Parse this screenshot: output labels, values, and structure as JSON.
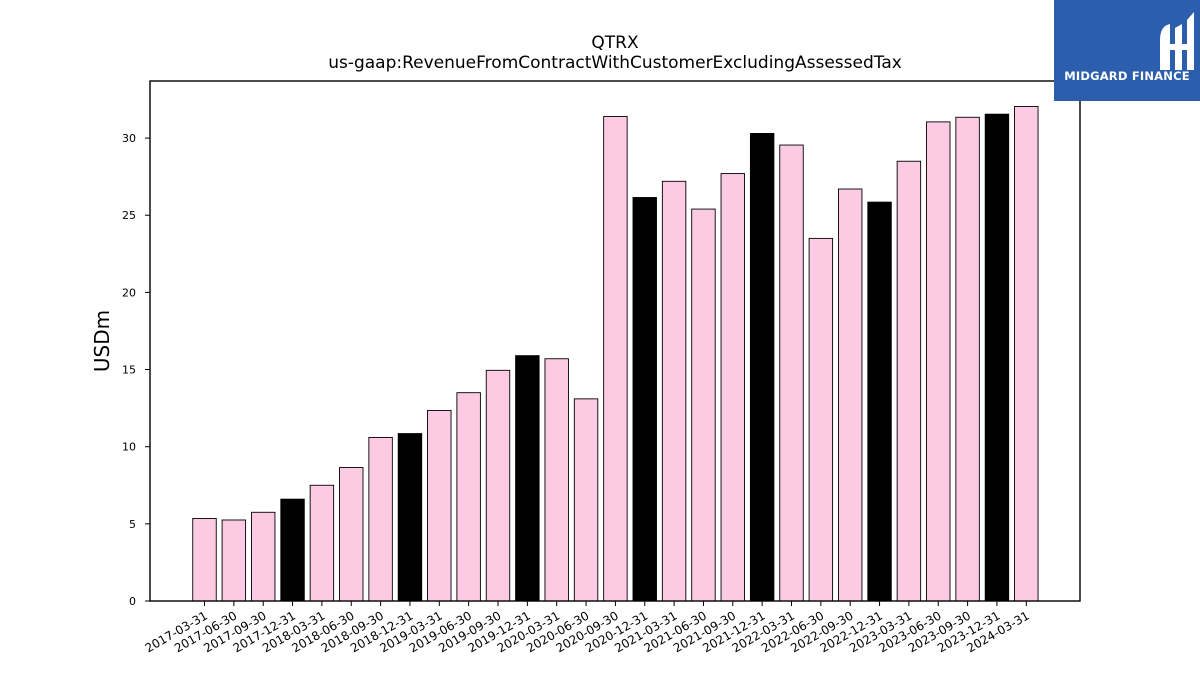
{
  "brand": {
    "name": "MIDGARD FINANCE",
    "background": "#2b5fad",
    "icon": "midgard-logo-icon"
  },
  "chart_data": {
    "type": "bar",
    "title": "QTRX",
    "subtitle": "us-gaap:RevenueFromContractWithCustomerExcludingAssessedTax",
    "xlabel": "",
    "ylabel": "USDm",
    "ylim": [
      0,
      33.7
    ],
    "yticks": [
      0,
      5,
      10,
      15,
      20,
      25,
      30
    ],
    "grid": false,
    "colors": {
      "quarter": "#fccbe3",
      "year_end": "#000000",
      "edge": "#000000"
    },
    "categories": [
      "2017-03-31",
      "2017-06-30",
      "2017-09-30",
      "2017-12-31",
      "2018-03-31",
      "2018-06-30",
      "2018-09-30",
      "2018-12-31",
      "2019-03-31",
      "2019-06-30",
      "2019-09-30",
      "2019-12-31",
      "2020-03-31",
      "2020-06-30",
      "2020-09-30",
      "2020-12-31",
      "2021-03-31",
      "2021-06-30",
      "2021-09-30",
      "2021-12-31",
      "2022-03-31",
      "2022-06-30",
      "2022-09-30",
      "2022-12-31",
      "2023-03-31",
      "2023-06-30",
      "2023-09-30",
      "2023-12-31",
      "2024-03-31"
    ],
    "values": [
      5.35,
      5.25,
      5.75,
      6.6,
      7.5,
      8.65,
      10.6,
      10.85,
      12.35,
      13.5,
      14.95,
      15.9,
      15.7,
      13.1,
      31.4,
      26.15,
      27.2,
      25.4,
      27.7,
      30.3,
      29.55,
      23.5,
      26.7,
      25.85,
      28.5,
      31.05,
      31.35,
      31.55,
      32.05
    ],
    "highlight": [
      false,
      false,
      false,
      true,
      false,
      false,
      false,
      true,
      false,
      false,
      false,
      true,
      false,
      false,
      false,
      true,
      false,
      false,
      false,
      true,
      false,
      false,
      false,
      true,
      false,
      false,
      false,
      true,
      false
    ]
  }
}
